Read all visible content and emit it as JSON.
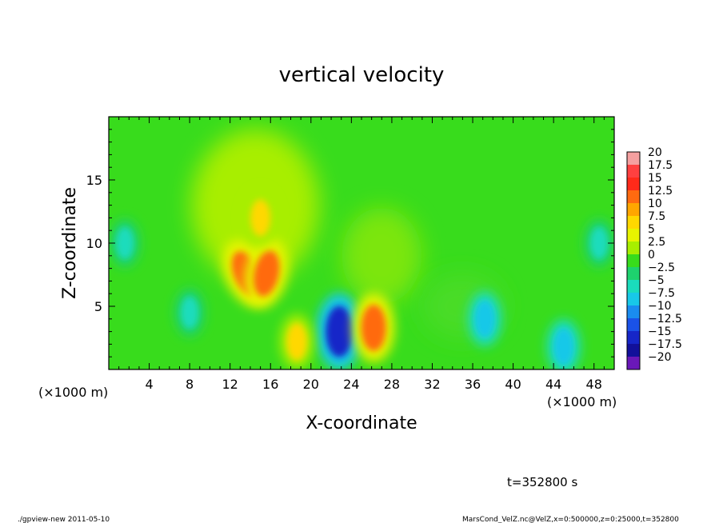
{
  "chart_data": {
    "type": "heatmap",
    "title": "vertical velocity",
    "xlabel": "X-coordinate",
    "ylabel": "Z-coordinate",
    "x_unit": "(×1000 m)",
    "x_unit_right": "(×1000 m)",
    "xlim": [
      0,
      50
    ],
    "ylim": [
      0,
      20
    ],
    "x_ticks": [
      "4",
      "8",
      "12",
      "16",
      "20",
      "24",
      "28",
      "32",
      "36",
      "40",
      "44",
      "48"
    ],
    "y_ticks": [
      "5",
      "10",
      "15"
    ],
    "colorbar_labels": [
      "20",
      "17.5",
      "15",
      "12.5",
      "10",
      "7.5",
      "5",
      "2.5",
      "0",
      "−2.5",
      "−5",
      "−7.5",
      "−10",
      "−12.5",
      "−15",
      "−17.5",
      "−20"
    ],
    "colorbar_colors": [
      "#f4a0a0",
      "#ff4040",
      "#ff2a1a",
      "#ff6a10",
      "#ffa600",
      "#ffd800",
      "#e8f400",
      "#a8ee00",
      "#38dc1c",
      "#1ed26e",
      "#1adcbc",
      "#18c8e8",
      "#1a8cf0",
      "#1a52e8",
      "#1626c8",
      "#12109a",
      "#6a18b8"
    ],
    "features": [
      {
        "x": 13.6,
        "z": 7.6,
        "value": 12.5
      },
      {
        "x": 15.6,
        "z": 7.6,
        "value": 12.5
      },
      {
        "x": 15.0,
        "z": 12.0,
        "value": 7.5
      },
      {
        "x": 22.8,
        "z": 3.0,
        "value": -15
      },
      {
        "x": 26.2,
        "z": 3.3,
        "value": 12.5
      },
      {
        "x": 18.6,
        "z": 2.2,
        "value": 7.5
      },
      {
        "x": 37.2,
        "z": 4.0,
        "value": -7.5
      },
      {
        "x": 45.0,
        "z": 1.8,
        "value": -7.5
      },
      {
        "x": 1.6,
        "z": 10.0,
        "value": -5
      },
      {
        "x": 8.0,
        "z": 4.5,
        "value": -5
      },
      {
        "x": 48.5,
        "z": 10.0,
        "value": -5
      }
    ],
    "time_label": "t=352800 s"
  },
  "footer": {
    "left": "./gpview-new   2011-05-10",
    "right": "MarsCond_VelZ.nc@VelZ,x=0:500000,z=0:25000,t=352800"
  }
}
